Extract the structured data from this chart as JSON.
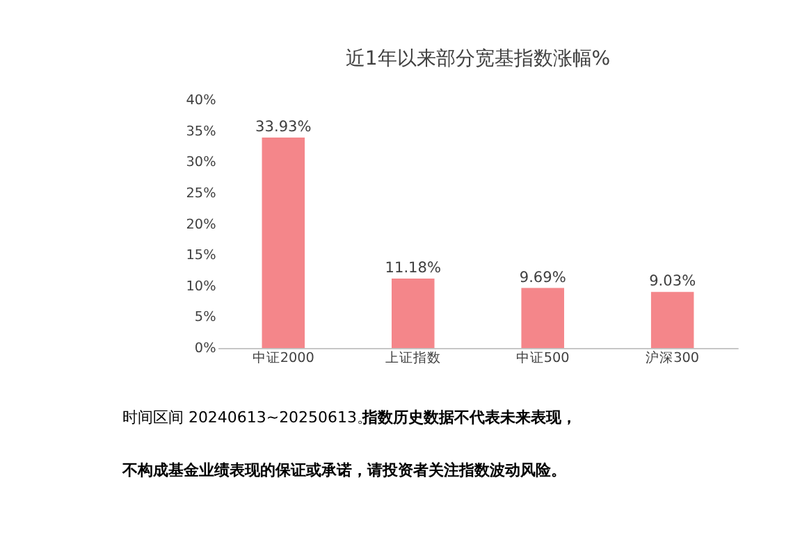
{
  "chart_data": {
    "type": "bar",
    "title": "近1年以来部分宽基指数涨幅%",
    "categories": [
      "中证2000",
      "上证指数",
      "中证500",
      "沪深300"
    ],
    "values": [
      33.93,
      11.18,
      9.69,
      9.03
    ],
    "value_labels": [
      "33.93%",
      "11.18%",
      "9.69%",
      "9.03%"
    ],
    "color": "#f4868a",
    "ylim": [
      0,
      40
    ],
    "yticks": [
      {
        "value": 0,
        "label": "0%"
      },
      {
        "value": 5,
        "label": "5%"
      },
      {
        "value": 10,
        "label": "10%"
      },
      {
        "value": 15,
        "label": "15%"
      },
      {
        "value": 20,
        "label": "20%"
      },
      {
        "value": 25,
        "label": "25%"
      },
      {
        "value": 30,
        "label": "30%"
      },
      {
        "value": 35,
        "label": "35%"
      },
      {
        "value": 40,
        "label": "40%"
      }
    ],
    "grid": false,
    "annotations": [
      "时间区间 20240613~20250613。",
      "指数历史数据不代表未来表现，",
      "不构成基金业绩表现的保证或承诺，请投资者关注指数波动风险。"
    ]
  }
}
